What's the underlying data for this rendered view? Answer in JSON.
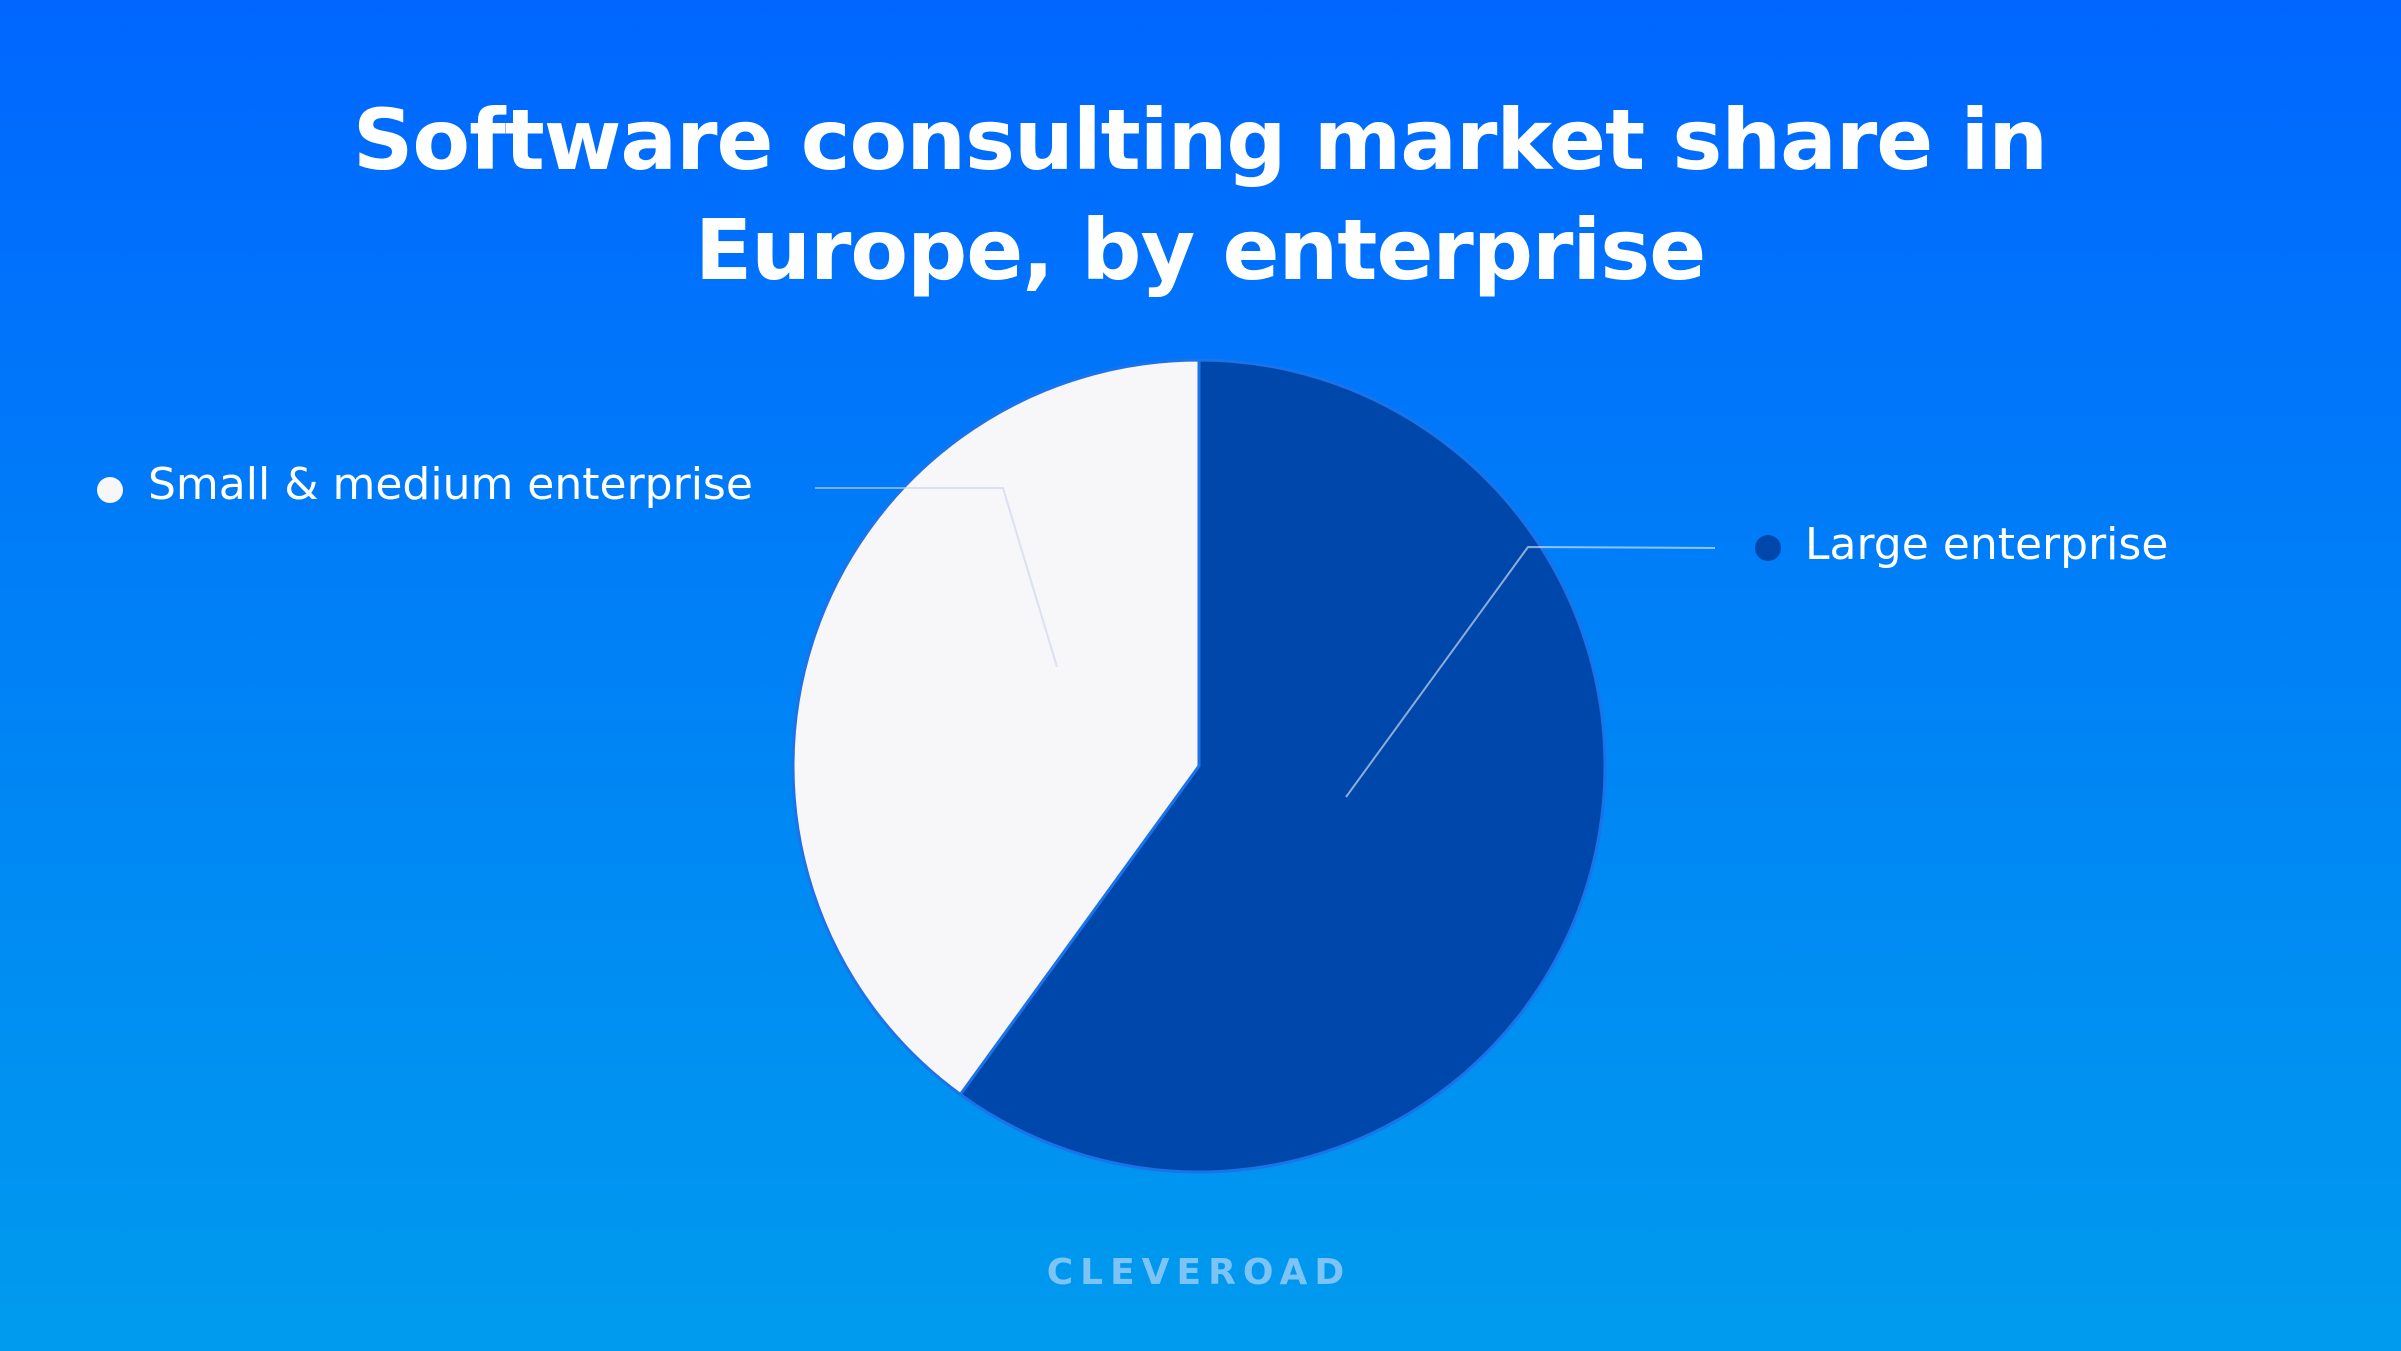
{
  "chart_data": {
    "type": "pie",
    "title": "Software consulting market share in Europe, by enterprise",
    "categories": [
      "Large enterprise",
      "Small & medium enterprise"
    ],
    "values": [
      60,
      40
    ],
    "colors": [
      "#0047ab",
      "#f7f7fa"
    ],
    "watermark": "CLEVEROAD"
  }
}
